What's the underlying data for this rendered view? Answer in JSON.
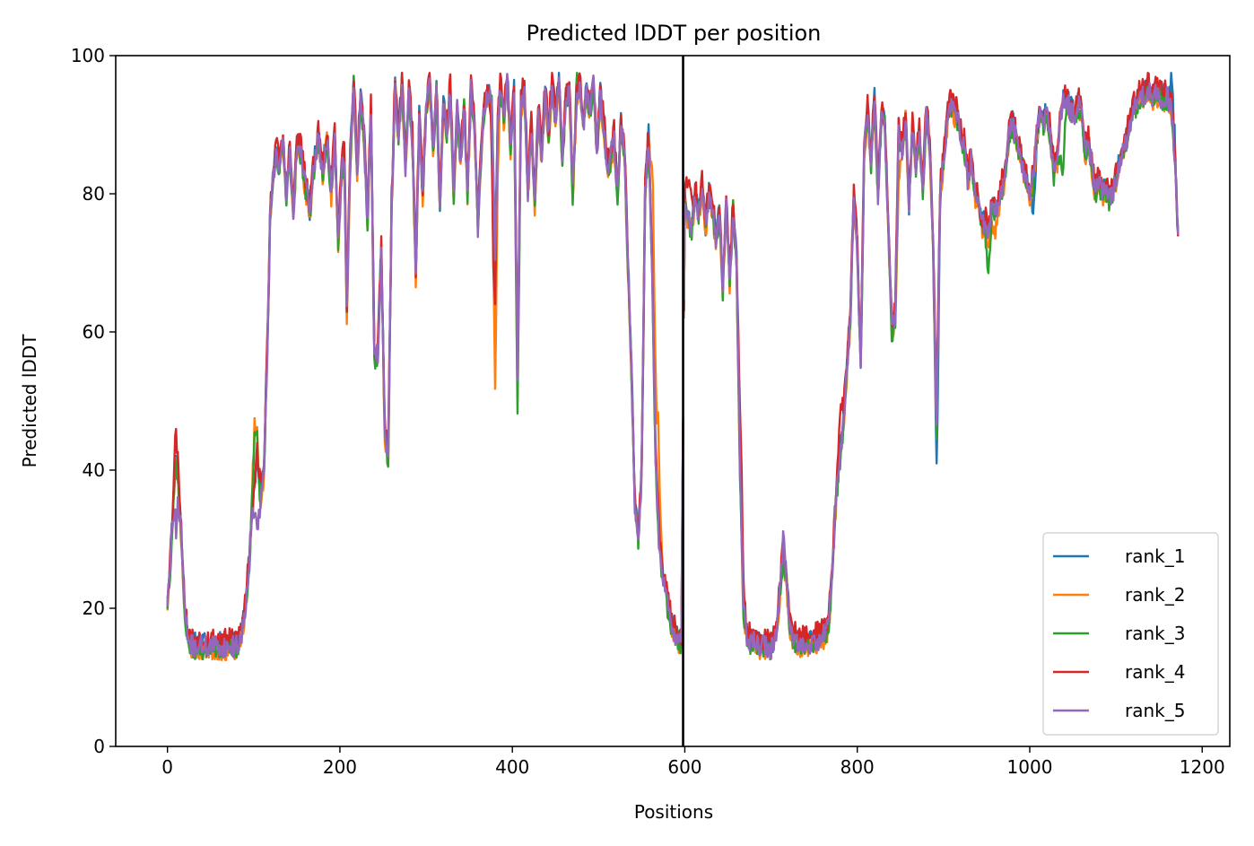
{
  "chart_data": {
    "type": "line",
    "title": "Predicted lDDT per position",
    "xlabel": "Positions",
    "ylabel": "Predicted lDDT",
    "xlim": [
      -60,
      1232
    ],
    "ylim": [
      0,
      100
    ],
    "x_ticks": [
      0,
      200,
      400,
      600,
      800,
      1000,
      1200
    ],
    "y_ticks": [
      0,
      20,
      40,
      60,
      80,
      100
    ],
    "grid": false,
    "legend_position": "lower-right",
    "vertical_lines": [
      {
        "x": 598,
        "color": "#000000"
      }
    ],
    "series_x_range": [
      0,
      1172
    ],
    "base_profile": [
      [
        0,
        21
      ],
      [
        3,
        26
      ],
      [
        6,
        33
      ],
      [
        9,
        41
      ],
      [
        12,
        40
      ],
      [
        15,
        33
      ],
      [
        18,
        25
      ],
      [
        21,
        18
      ],
      [
        25,
        15
      ],
      [
        30,
        14.5
      ],
      [
        40,
        14.5
      ],
      [
        50,
        14.5
      ],
      [
        60,
        14.5
      ],
      [
        70,
        14.3
      ],
      [
        80,
        14.5
      ],
      [
        86,
        16
      ],
      [
        90,
        20
      ],
      [
        95,
        27
      ],
      [
        100,
        36
      ],
      [
        104,
        42
      ],
      [
        108,
        36
      ],
      [
        112,
        40
      ],
      [
        116,
        58
      ],
      [
        119,
        76
      ],
      [
        122,
        82
      ],
      [
        126,
        86
      ],
      [
        130,
        84
      ],
      [
        134,
        87
      ],
      [
        138,
        80
      ],
      [
        142,
        86
      ],
      [
        146,
        77
      ],
      [
        150,
        87
      ],
      [
        155,
        86
      ],
      [
        160,
        81
      ],
      [
        165,
        77
      ],
      [
        170,
        84
      ],
      [
        175,
        88
      ],
      [
        180,
        83
      ],
      [
        185,
        88
      ],
      [
        190,
        80
      ],
      [
        194,
        88
      ],
      [
        198,
        73
      ],
      [
        202,
        83
      ],
      [
        205,
        86
      ],
      [
        208,
        63
      ],
      [
        212,
        85
      ],
      [
        216,
        96
      ],
      [
        220,
        83
      ],
      [
        224,
        94
      ],
      [
        228,
        88
      ],
      [
        232,
        76
      ],
      [
        236,
        92
      ],
      [
        240,
        56
      ],
      [
        244,
        57
      ],
      [
        248,
        72
      ],
      [
        252,
        45
      ],
      [
        256,
        42
      ],
      [
        260,
        78
      ],
      [
        264,
        96
      ],
      [
        268,
        88
      ],
      [
        272,
        96
      ],
      [
        276,
        84
      ],
      [
        280,
        95
      ],
      [
        284,
        88
      ],
      [
        288,
        68
      ],
      [
        292,
        91
      ],
      [
        296,
        80
      ],
      [
        300,
        92
      ],
      [
        304,
        96
      ],
      [
        308,
        86
      ],
      [
        312,
        95
      ],
      [
        316,
        78
      ],
      [
        320,
        93
      ],
      [
        324,
        89
      ],
      [
        328,
        95
      ],
      [
        332,
        80
      ],
      [
        336,
        92
      ],
      [
        340,
        85
      ],
      [
        344,
        93
      ],
      [
        348,
        80
      ],
      [
        352,
        95
      ],
      [
        356,
        90
      ],
      [
        360,
        75
      ],
      [
        364,
        86
      ],
      [
        368,
        93
      ],
      [
        372,
        94
      ],
      [
        376,
        93
      ],
      [
        380,
        70
      ],
      [
        383,
        90
      ],
      [
        386,
        95
      ],
      [
        390,
        91
      ],
      [
        394,
        96
      ],
      [
        398,
        87
      ],
      [
        402,
        95
      ],
      [
        406,
        52
      ],
      [
        410,
        93
      ],
      [
        414,
        95
      ],
      [
        418,
        80
      ],
      [
        422,
        90
      ],
      [
        426,
        78
      ],
      [
        430,
        92
      ],
      [
        434,
        85
      ],
      [
        438,
        95
      ],
      [
        442,
        88
      ],
      [
        446,
        96
      ],
      [
        450,
        91
      ],
      [
        454,
        96
      ],
      [
        458,
        85
      ],
      [
        462,
        94
      ],
      [
        466,
        95
      ],
      [
        470,
        80
      ],
      [
        474,
        92
      ],
      [
        478,
        96
      ],
      [
        482,
        89
      ],
      [
        486,
        95
      ],
      [
        490,
        92
      ],
      [
        494,
        96
      ],
      [
        498,
        86
      ],
      [
        502,
        94
      ],
      [
        506,
        90
      ],
      [
        510,
        84
      ],
      [
        514,
        85
      ],
      [
        518,
        88
      ],
      [
        522,
        80
      ],
      [
        526,
        90
      ],
      [
        530,
        86
      ],
      [
        534,
        70
      ],
      [
        538,
        55
      ],
      [
        542,
        35
      ],
      [
        546,
        30
      ],
      [
        550,
        40
      ],
      [
        554,
        80
      ],
      [
        558,
        88
      ],
      [
        562,
        70
      ],
      [
        566,
        42
      ],
      [
        570,
        30
      ],
      [
        574,
        25
      ],
      [
        578,
        22
      ],
      [
        582,
        19
      ],
      [
        586,
        17
      ],
      [
        590,
        16
      ],
      [
        596,
        15
      ],
      [
        600,
        79
      ],
      [
        604,
        76
      ],
      [
        608,
        75
      ],
      [
        612,
        80
      ],
      [
        616,
        77
      ],
      [
        620,
        81
      ],
      [
        624,
        75
      ],
      [
        628,
        80
      ],
      [
        632,
        78
      ],
      [
        636,
        73
      ],
      [
        640,
        77
      ],
      [
        644,
        66
      ],
      [
        648,
        78
      ],
      [
        652,
        67
      ],
      [
        656,
        78
      ],
      [
        660,
        70
      ],
      [
        664,
        40
      ],
      [
        668,
        20
      ],
      [
        672,
        16
      ],
      [
        676,
        15
      ],
      [
        680,
        15
      ],
      [
        690,
        14.5
      ],
      [
        700,
        14
      ],
      [
        706,
        16
      ],
      [
        710,
        22
      ],
      [
        714,
        28
      ],
      [
        718,
        24
      ],
      [
        722,
        17
      ],
      [
        730,
        15
      ],
      [
        740,
        15
      ],
      [
        750,
        15
      ],
      [
        760,
        16
      ],
      [
        766,
        17
      ],
      [
        770,
        23
      ],
      [
        775,
        35
      ],
      [
        780,
        42
      ],
      [
        784,
        47
      ],
      [
        788,
        55
      ],
      [
        792,
        62
      ],
      [
        796,
        80
      ],
      [
        800,
        72
      ],
      [
        804,
        55
      ],
      [
        808,
        86
      ],
      [
        812,
        92
      ],
      [
        816,
        84
      ],
      [
        820,
        93
      ],
      [
        824,
        80
      ],
      [
        828,
        91
      ],
      [
        832,
        90
      ],
      [
        836,
        75
      ],
      [
        840,
        60
      ],
      [
        844,
        62
      ],
      [
        848,
        89
      ],
      [
        852,
        86
      ],
      [
        856,
        91
      ],
      [
        860,
        78
      ],
      [
        864,
        90
      ],
      [
        868,
        84
      ],
      [
        872,
        89
      ],
      [
        876,
        80
      ],
      [
        880,
        92
      ],
      [
        884,
        87
      ],
      [
        888,
        72
      ],
      [
        892,
        46
      ],
      [
        896,
        80
      ],
      [
        900,
        85
      ],
      [
        904,
        90
      ],
      [
        908,
        93
      ],
      [
        912,
        92
      ],
      [
        916,
        91
      ],
      [
        920,
        88
      ],
      [
        924,
        87
      ],
      [
        928,
        82
      ],
      [
        932,
        85
      ],
      [
        936,
        80
      ],
      [
        940,
        79
      ],
      [
        944,
        75
      ],
      [
        948,
        76
      ],
      [
        952,
        73
      ],
      [
        956,
        78
      ],
      [
        960,
        77
      ],
      [
        964,
        79
      ],
      [
        968,
        81
      ],
      [
        972,
        83
      ],
      [
        976,
        89
      ],
      [
        980,
        90
      ],
      [
        984,
        88
      ],
      [
        988,
        86
      ],
      [
        992,
        84
      ],
      [
        996,
        82
      ],
      [
        1000,
        80
      ],
      [
        1004,
        82
      ],
      [
        1008,
        88
      ],
      [
        1012,
        92
      ],
      [
        1016,
        90
      ],
      [
        1020,
        92
      ],
      [
        1024,
        88
      ],
      [
        1028,
        83
      ],
      [
        1032,
        85
      ],
      [
        1036,
        91
      ],
      [
        1040,
        94
      ],
      [
        1044,
        93
      ],
      [
        1048,
        92
      ],
      [
        1052,
        91
      ],
      [
        1056,
        93
      ],
      [
        1060,
        92
      ],
      [
        1064,
        86
      ],
      [
        1068,
        87
      ],
      [
        1072,
        84
      ],
      [
        1076,
        80
      ],
      [
        1080,
        82
      ],
      [
        1084,
        80
      ],
      [
        1088,
        81
      ],
      [
        1092,
        79
      ],
      [
        1096,
        80
      ],
      [
        1100,
        82
      ],
      [
        1104,
        84
      ],
      [
        1108,
        86
      ],
      [
        1112,
        88
      ],
      [
        1116,
        90
      ],
      [
        1120,
        92
      ],
      [
        1124,
        93
      ],
      [
        1128,
        94
      ],
      [
        1132,
        94
      ],
      [
        1136,
        95
      ],
      [
        1140,
        94.5
      ],
      [
        1144,
        94
      ],
      [
        1148,
        94.5
      ],
      [
        1152,
        94
      ],
      [
        1156,
        94
      ],
      [
        1160,
        94
      ],
      [
        1164,
        92
      ],
      [
        1168,
        86
      ],
      [
        1172,
        74
      ]
    ],
    "series": [
      {
        "name": "rank_1",
        "color": "#1f77b4",
        "offset": 0.5,
        "seed": 11,
        "dips": [
          [
            893,
            -8
          ],
          [
            1005,
            -6
          ],
          [
            1165,
            5
          ],
          [
            820,
            2
          ]
        ]
      },
      {
        "name": "rank_2",
        "color": "#ff7f0e",
        "offset": -0.5,
        "seed": 23,
        "dips": [
          [
            380,
            -18
          ],
          [
            563,
            18
          ],
          [
            569,
            15
          ],
          [
            848,
            -6
          ],
          [
            101,
            10
          ],
          [
            960,
            -3
          ]
        ]
      },
      {
        "name": "rank_3",
        "color": "#2ca02c",
        "offset": -0.3,
        "seed": 37,
        "dips": [
          [
            406,
            -4
          ],
          [
            101,
            7
          ],
          [
            1038,
            -10
          ],
          [
            952,
            -5
          ],
          [
            475,
            4
          ]
        ]
      },
      {
        "name": "rank_4",
        "color": "#d62728",
        "offset": 1.2,
        "seed": 53,
        "dips": [
          [
            378,
            -12
          ],
          [
            605,
            6
          ],
          [
            665,
            9
          ],
          [
            780,
            5
          ],
          [
            10,
            3
          ]
        ]
      },
      {
        "name": "rank_5",
        "color": "#9467bd",
        "offset": 0,
        "seed": 71,
        "dips": [
          [
            10,
            -9
          ],
          [
            104,
            -10
          ],
          [
            715,
            2
          ]
        ]
      }
    ]
  }
}
